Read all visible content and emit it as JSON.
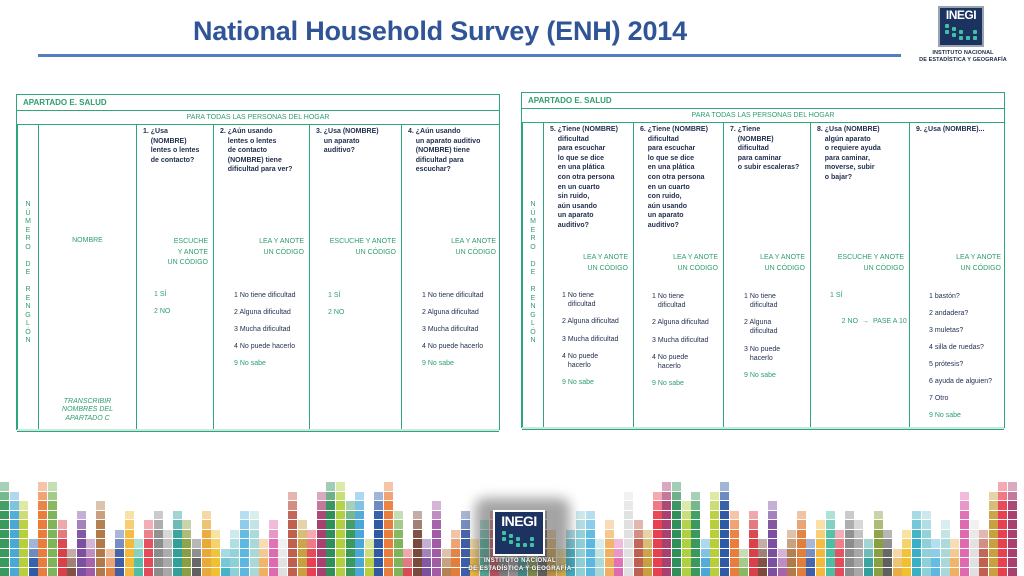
{
  "slide": {
    "title": "National Household Survey (ENH) 2014",
    "title_color": "#2f5597",
    "rule_color": "#4f7fbf",
    "accent_green": "#2e9e6e"
  },
  "logo": {
    "brand": "INEGI",
    "caption_line1": "INSTITUTO NACIONAL",
    "caption_line2": "DE ESTADÍSTICA Y GEOGRAFÍA"
  },
  "left_table": {
    "section": "APARTADO E. SALUD",
    "subheader": "PARA TODAS LAS PERSONAS DEL HOGAR",
    "row_label": "N\nÚ\nM\nE\nR\nO\n\nD\nE\n\nR\nE\nN\nG\nL\nÓ\nN",
    "name_header": "NOMBRE",
    "name_note": "TRANSCRIBIR\nNOMBRES DEL\nAPARTADO C",
    "questions": [
      {
        "text": "1. ¿Usa\n    (NOMBRE)\n    lentes o lentes\n    de contacto?",
        "instruction": "ESCUCHE\nY ANOTE\nUN CÓDIGO",
        "options": [
          {
            "label": "1 SÍ",
            "green": true
          },
          {
            "label": "2 NO",
            "green": true
          }
        ]
      },
      {
        "text": "2. ¿Aún usando\n    lentes o lentes\n    de contacto\n    (NOMBRE) tiene\n    dificultad para ver?",
        "instruction": "LEA Y ANOTE\nUN CÓDIGO",
        "options": [
          {
            "label": "1 No tiene dificultad",
            "green": false
          },
          {
            "label": "2 Alguna dificultad",
            "green": false
          },
          {
            "label": "3 Mucha dificultad",
            "green": false
          },
          {
            "label": "4 No puede hacerlo",
            "green": false
          },
          {
            "label": "9 No sabe",
            "green": true
          }
        ]
      },
      {
        "text": "3. ¿Usa (NOMBRE)\n    un aparato\n    auditivo?",
        "instruction": "ESCUCHE Y ANOTE\nUN CÓDIGO",
        "options": [
          {
            "label": "1 SÍ",
            "green": true
          },
          {
            "label": "2 NO",
            "green": true
          }
        ]
      },
      {
        "text": "4. ¿Aún usando\n    un aparato auditivo\n    (NOMBRE) tiene\n    dificultad para\n    escuchar?",
        "instruction": "LEA Y ANOTE\nUN CÓDIGO",
        "options": [
          {
            "label": "1 No tiene dificultad",
            "green": false
          },
          {
            "label": "2 Alguna dificultad",
            "green": false
          },
          {
            "label": "3 Mucha dificultad",
            "green": false
          },
          {
            "label": "4 No puede hacerlo",
            "green": false
          },
          {
            "label": "9 No sabe",
            "green": true
          }
        ]
      }
    ]
  },
  "right_table": {
    "section": "APARTADO E. SALUD",
    "subheader": "PARA TODAS LAS PERSONAS DEL HOGAR",
    "row_label": "N\nÚ\nM\nE\nR\nO\n\nD\nE\n\nR\nE\nN\nG\nL\nÓ\nN",
    "questions": [
      {
        "text": "5. ¿Tiene (NOMBRE)\n    dificultad\n    para escuchar\n    lo que se dice\n    en una plática\n    con otra persona\n    en un cuarto\n    sin ruido,\n    aún usando\n    un aparato\n    auditivo?",
        "instruction": "LEA Y ANOTE\nUN CÓDIGO",
        "options": [
          {
            "label": "1 No tiene\n   dificultad",
            "green": false
          },
          {
            "label": "2 Alguna dificultad",
            "green": false
          },
          {
            "label": "3 Mucha dificultad",
            "green": false
          },
          {
            "label": "4 No puede\n   hacerlo",
            "green": false
          },
          {
            "label": "9 No sabe",
            "green": true
          }
        ]
      },
      {
        "text": "6. ¿Tiene (NOMBRE)\n    dificultad\n    para escuchar\n    lo que se dice\n    en una plática\n    con otra persona\n    en un cuarto\n    con ruido,\n    aún usando\n    un aparato\n    auditivo?",
        "instruction": "LEA Y ANOTE\nUN CÓDIGO",
        "options": [
          {
            "label": "1 No tiene\n   dificultad",
            "green": false
          },
          {
            "label": "2 Alguna dificultad",
            "green": false
          },
          {
            "label": "3 Mucha dificultad",
            "green": false
          },
          {
            "label": "4 No puede\n   hacerlo",
            "green": false
          },
          {
            "label": "9 No sabe",
            "green": true
          }
        ]
      },
      {
        "text": "7. ¿Tiene\n    (NOMBRE)\n    dificultad\n    para caminar\n    o subir escaleras?",
        "instruction": "LEA Y ANOTE\nUN CÓDIGO",
        "options": [
          {
            "label": "1 No tiene\n   dificultad",
            "green": false
          },
          {
            "label": "2 Alguna\n   dificultad",
            "green": false
          },
          {
            "label": "3 No puede\n   hacerlo",
            "green": false
          },
          {
            "label": "9 No sabe",
            "green": true
          }
        ]
      },
      {
        "text": "8. ¿Usa (NOMBRE)\n    algún aparato\n    o requiere ayuda\n    para caminar,\n    moverse, subir\n    o bajar?",
        "instruction": "ESCUCHE Y ANOTE\nUN CÓDIGO",
        "options": [
          {
            "label": "1 SÍ",
            "green": true
          },
          {
            "label": "2 NO",
            "green": true,
            "arrow": "→",
            "goto": "PASE A 10"
          }
        ]
      },
      {
        "text": "9. ¿Usa (NOMBRE)...",
        "instruction": "LEA Y ANOTE\nUN CÓDIGO",
        "options": [
          {
            "label": "1 bastón?",
            "green": false
          },
          {
            "label": "2 andadera?",
            "green": false
          },
          {
            "label": "3 muletas?",
            "green": false
          },
          {
            "label": "4 silla de ruedas?",
            "green": false
          },
          {
            "label": "5 prótesis?",
            "green": false
          },
          {
            "label": "6 ayuda de alguien?",
            "green": false
          },
          {
            "label": "7 Otro",
            "green": false
          },
          {
            "label": "9 No sabe",
            "green": true
          }
        ]
      }
    ]
  },
  "equalizer_palette": [
    "#3a9a5e",
    "#4aa8d8",
    "#b8cf3a",
    "#2f5aa6",
    "#ea7d3b",
    "#7fb55a",
    "#d9404a",
    "#7a4a3a",
    "#7d4fa0",
    "#a25ca6",
    "#b07a4a",
    "#e27d3a",
    "#3e5ea8",
    "#f4b83a",
    "#4bbfa6",
    "#e44a5a",
    "#8c8c8c",
    "#a8a8a8",
    "#30a09a",
    "#8aa040",
    "#606060",
    "#e8a93a",
    "#f0c030",
    "#3ab0c8",
    "#8ed0d8",
    "#5cb8e0",
    "#a8d8d8",
    "#f0b060",
    "#e06ab0",
    "#e0e0e0",
    "#c06050",
    "#c8a040",
    "#e84050",
    "#a84070",
    "#30905a",
    "#b0d040"
  ]
}
